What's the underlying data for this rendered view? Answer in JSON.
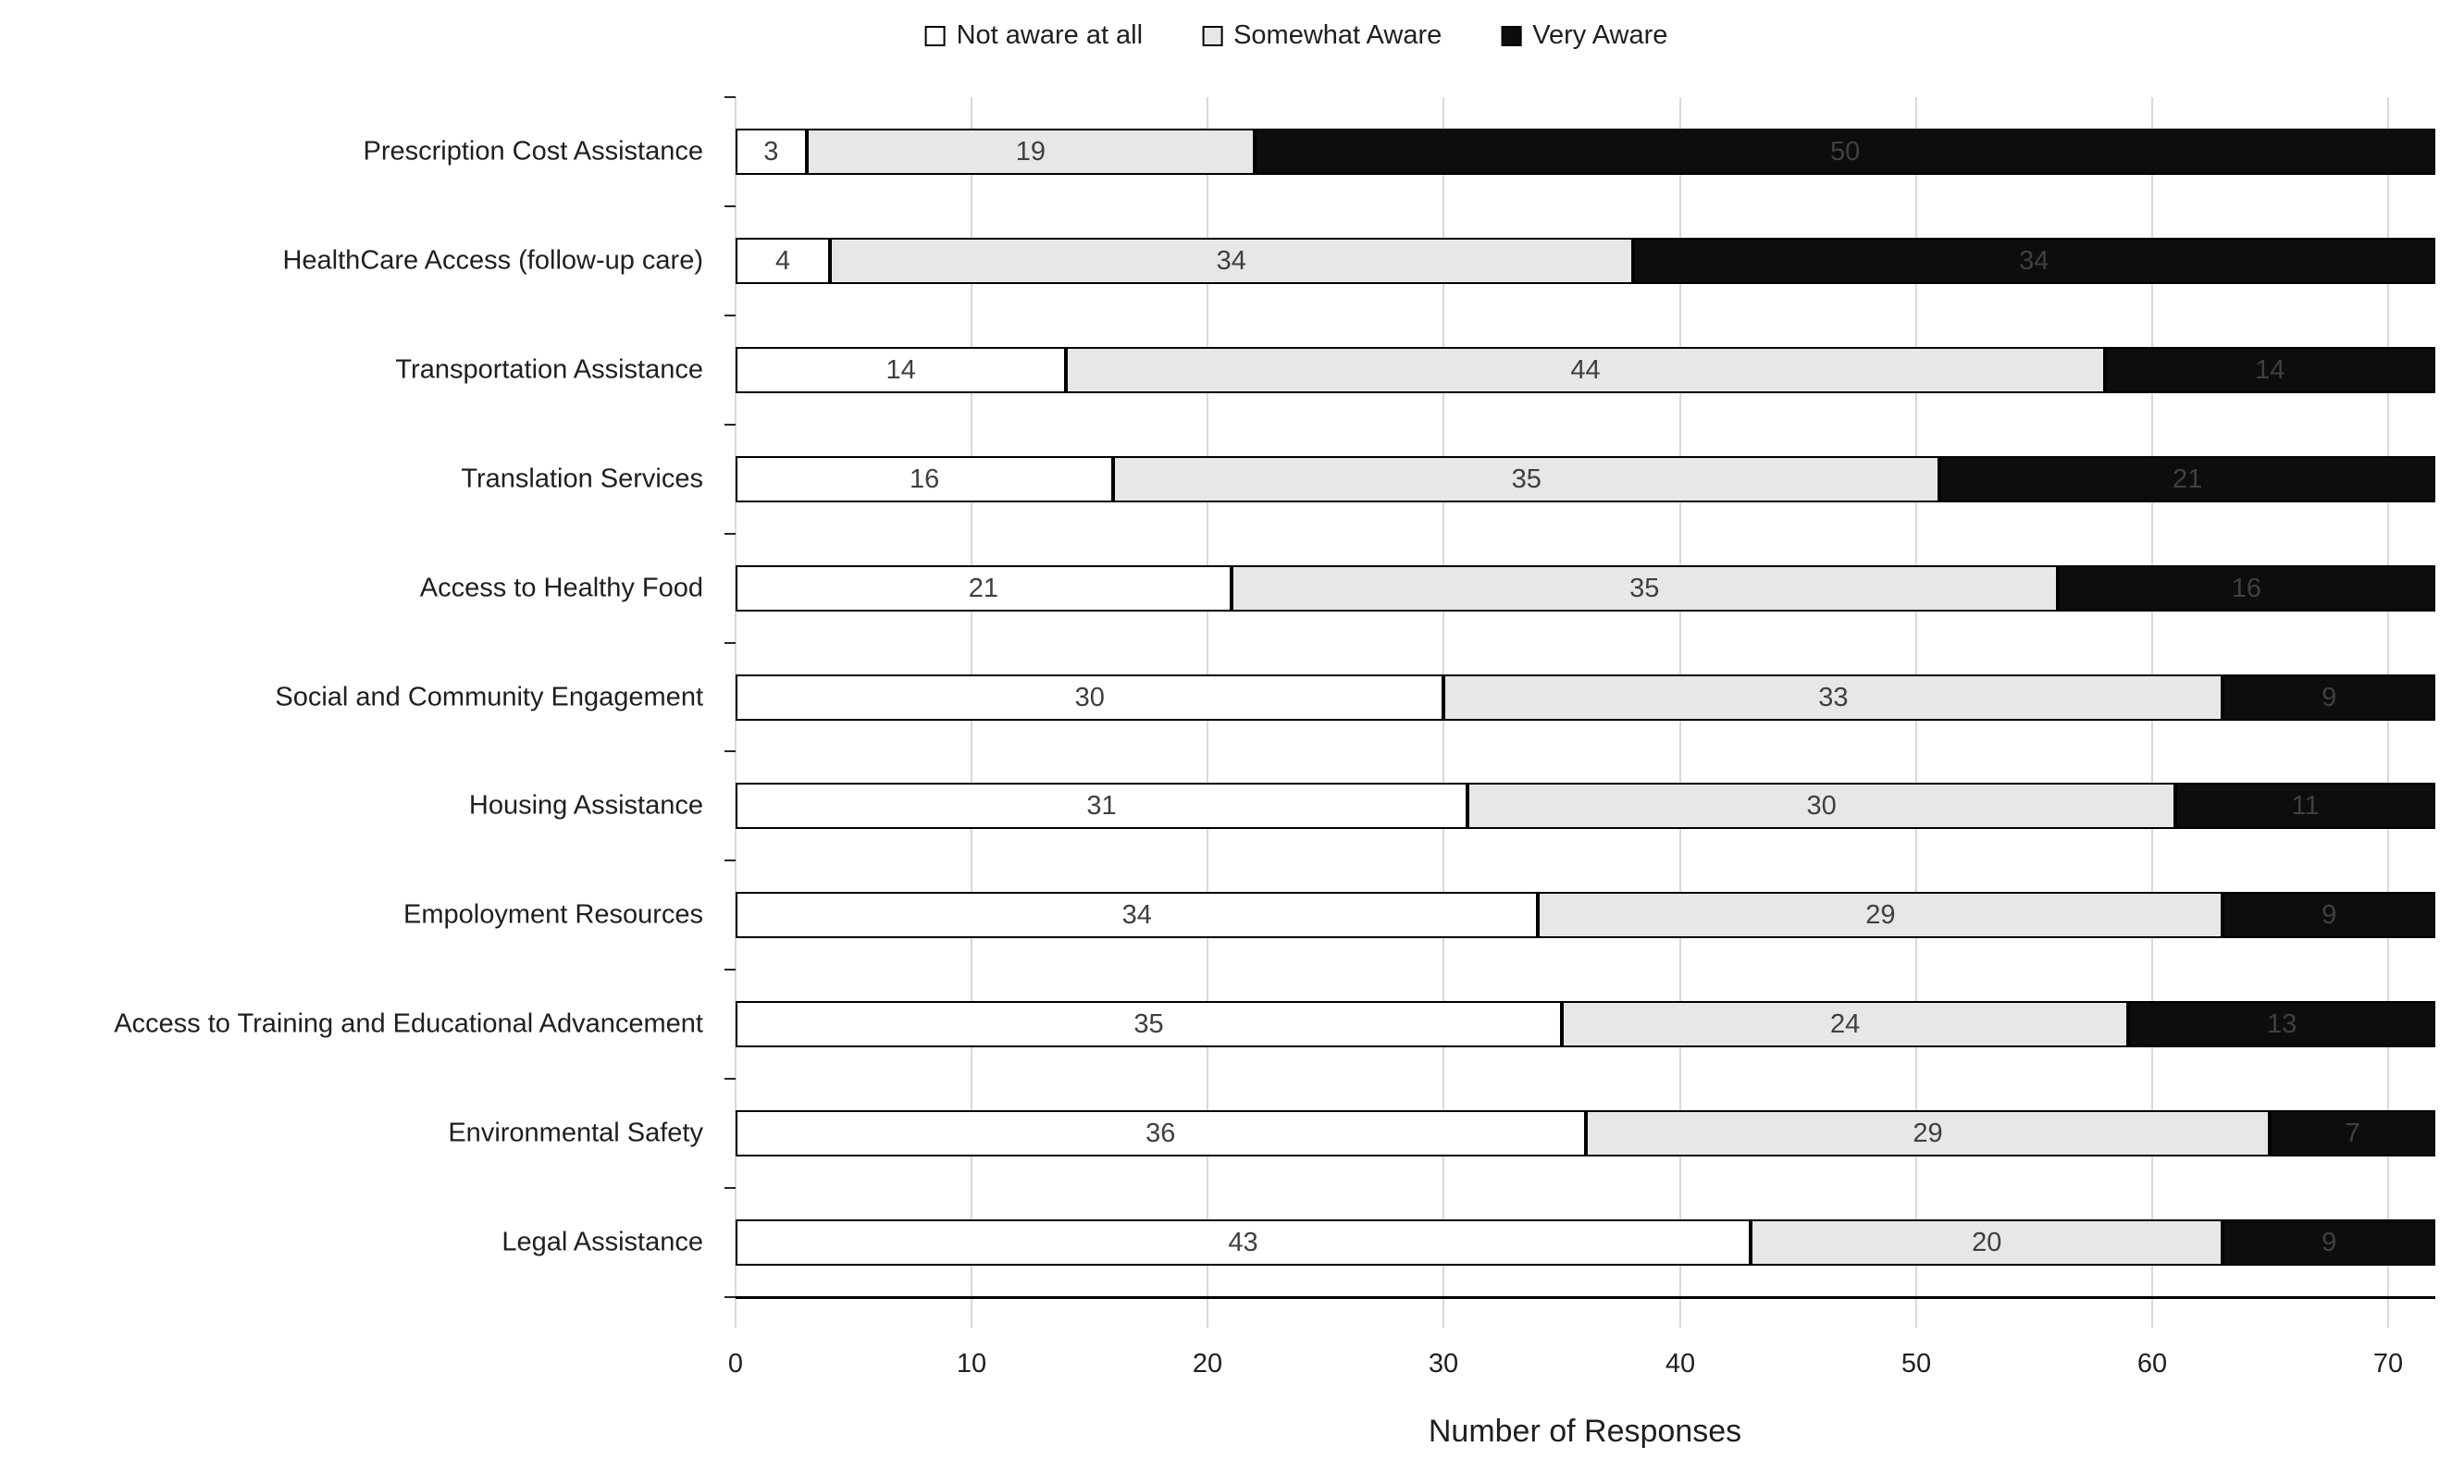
{
  "legend": {
    "items": [
      {
        "label": "Not aware at all",
        "color": "#FFFFFF"
      },
      {
        "label": "Somewhat Aware",
        "color": "#E7E7E7"
      },
      {
        "label": "Very Aware",
        "color": "#0D0D0D"
      }
    ]
  },
  "chart_data": {
    "type": "bar",
    "orientation": "horizontal",
    "stacked": true,
    "title": "",
    "xlabel": "Number of Responses",
    "ylabel": "",
    "xlim": [
      0,
      72
    ],
    "x_ticks": [
      0,
      10,
      20,
      30,
      40,
      50,
      60,
      70
    ],
    "grid": true,
    "legend_position": "top",
    "categories": [
      "Prescription Cost Assistance",
      "HealthCare Access (follow-up care)",
      "Transportation Assistance",
      "Translation Services",
      "Access to Healthy Food",
      "Social and Community Engagement",
      "Housing Assistance",
      "Empoloyment Resources",
      "Access to Training and Educational Advancement",
      "Environmental Safety",
      "Legal Assistance"
    ],
    "series": [
      {
        "name": "Not aware at all",
        "color": "#FFFFFF",
        "values": [
          3,
          4,
          14,
          16,
          21,
          30,
          31,
          34,
          35,
          36,
          43
        ]
      },
      {
        "name": "Somewhat Aware",
        "color": "#E7E7E7",
        "values": [
          19,
          34,
          44,
          35,
          35,
          33,
          30,
          29,
          24,
          29,
          20
        ]
      },
      {
        "name": "Very Aware",
        "color": "#0D0D0D",
        "values": [
          50,
          34,
          14,
          21,
          16,
          9,
          11,
          9,
          13,
          7,
          9
        ]
      }
    ]
  },
  "colors": {
    "gridline": "#D9D9D9",
    "axis_line": "#000000",
    "value_label": "#404040",
    "text": "#1F1F1F"
  }
}
